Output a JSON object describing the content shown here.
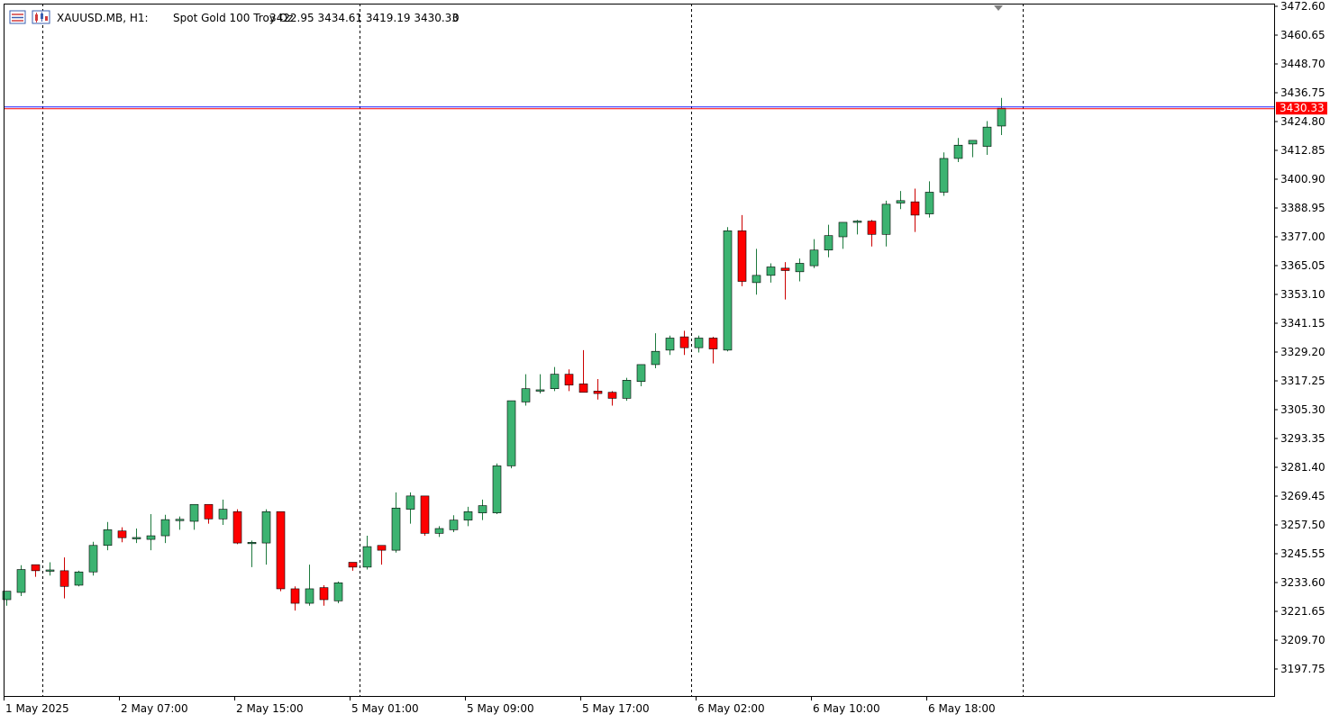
{
  "header": {
    "symbol": "XAUUSD.MB, H1:",
    "description": "Spot Gold 100 Troy Oz",
    "ohlc": "3422.95 3434.61 3419.19 3430.33",
    "extra": "0",
    "icons": [
      "chart-list-icon",
      "symbol-chart-icon"
    ]
  },
  "current_price_label": "3430.33",
  "colors": {
    "bull": "#3cb371",
    "bear": "#ff0000",
    "outline": "#000000",
    "wick_bull": "#1e7a3e",
    "wick_bear": "#cc0000",
    "ask_line": "#1e1eff",
    "bid_line": "#ff0000",
    "price_tag": "#ff0000"
  },
  "chart_data": {
    "type": "candlestick",
    "timeframe": "H1",
    "y_ticks": [
      "3472.60",
      "3460.65",
      "3448.70",
      "3436.75",
      "3424.80",
      "3412.85",
      "3400.90",
      "3388.95",
      "3377.00",
      "3365.05",
      "3353.10",
      "3341.15",
      "3329.20",
      "3317.25",
      "3305.30",
      "3293.35",
      "3281.40",
      "3269.45",
      "3257.50",
      "3245.55",
      "3233.60",
      "3221.65",
      "3209.70",
      "3197.75"
    ],
    "ylim": [
      3188.9,
      3473.0
    ],
    "x_labels": [
      {
        "index": 0,
        "text": "1 May 2025"
      },
      {
        "index": 8,
        "text": "2 May 07:00"
      },
      {
        "index": 16,
        "text": "2 May 15:00"
      },
      {
        "index": 24,
        "text": "5 May 01:00"
      },
      {
        "index": 32,
        "text": "5 May 09:00"
      },
      {
        "index": 40,
        "text": "5 May 17:00"
      },
      {
        "index": 48,
        "text": "6 May 02:00"
      },
      {
        "index": 56,
        "text": "6 May 10:00"
      },
      {
        "index": 64,
        "text": "6 May 18:00"
      }
    ],
    "separators": [
      2,
      24,
      47,
      70
    ],
    "candles": [
      [
        3226.5,
        3230.0,
        3224.0,
        3230.0
      ],
      [
        3229.5,
        3240.8,
        3228.0,
        3239.0
      ],
      [
        3241.0,
        3241.0,
        3236.0,
        3238.5
      ],
      [
        3238.5,
        3242.0,
        3236.5,
        3238.6
      ],
      [
        3238.5,
        3244.0,
        3227.0,
        3232.0
      ],
      [
        3232.5,
        3238.5,
        3232.0,
        3238.0
      ],
      [
        3238.0,
        3250.5,
        3236.5,
        3249.0
      ],
      [
        3249.0,
        3258.7,
        3247.0,
        3255.5
      ],
      [
        3255.0,
        3256.5,
        3250.3,
        3252.2
      ],
      [
        3252.0,
        3256.0,
        3250.0,
        3252.0
      ],
      [
        3251.5,
        3262.0,
        3247.0,
        3253.0
      ],
      [
        3253.0,
        3261.7,
        3250.0,
        3259.7
      ],
      [
        3259.4,
        3261.0,
        3255.5,
        3259.7
      ],
      [
        3259.0,
        3266.0,
        3255.5,
        3266.0
      ],
      [
        3266.0,
        3266.0,
        3258.0,
        3260.0
      ],
      [
        3260.0,
        3268.0,
        3257.5,
        3264.0
      ],
      [
        3263.0,
        3264.0,
        3249.5,
        3250.0
      ],
      [
        3250.0,
        3251.0,
        3240.0,
        3250.0
      ],
      [
        3250.0,
        3264.0,
        3241.0,
        3263.0
      ],
      [
        3263.0,
        3263.0,
        3230.0,
        3231.0
      ],
      [
        3231.0,
        3232.0,
        3222.0,
        3225.0
      ],
      [
        3225.0,
        3241.0,
        3224.0,
        3231.0
      ],
      [
        3231.5,
        3232.5,
        3224.0,
        3226.5
      ],
      [
        3226.0,
        3234.0,
        3225.0,
        3233.5
      ],
      [
        3242.0,
        3242.0,
        3238.5,
        3240.0
      ],
      [
        3240.0,
        3253.0,
        3239.0,
        3248.5
      ],
      [
        3249.0,
        3249.0,
        3241.0,
        3247.0
      ],
      [
        3247.0,
        3271.0,
        3246.0,
        3264.5
      ],
      [
        3264.0,
        3271.0,
        3258.0,
        3269.5
      ],
      [
        3269.5,
        3269.5,
        3253.0,
        3254.0
      ],
      [
        3254.0,
        3257.0,
        3252.5,
        3256.0
      ],
      [
        3255.5,
        3261.5,
        3254.5,
        3259.5
      ],
      [
        3259.5,
        3265.0,
        3257.0,
        3263.0
      ],
      [
        3262.5,
        3268.0,
        3259.5,
        3265.5
      ],
      [
        3262.5,
        3283.0,
        3262.0,
        3282.0
      ],
      [
        3282.0,
        3309.0,
        3281.0,
        3309.0
      ],
      [
        3308.5,
        3320.0,
        3307.0,
        3314.0
      ],
      [
        3313.0,
        3320.0,
        3312.0,
        3313.5
      ],
      [
        3314.0,
        3323.0,
        3313.0,
        3320.0
      ],
      [
        3320.0,
        3322.0,
        3313.0,
        3315.5
      ],
      [
        3316.0,
        3330.0,
        3312.5,
        3312.5
      ],
      [
        3313.0,
        3318.0,
        3309.5,
        3312.0
      ],
      [
        3312.5,
        3313.0,
        3307.0,
        3310.0
      ],
      [
        3310.0,
        3318.5,
        3309.0,
        3317.5
      ],
      [
        3317.0,
        3324.0,
        3315.0,
        3324.0
      ],
      [
        3324.0,
        3337.0,
        3322.5,
        3329.5
      ],
      [
        3330.0,
        3336.0,
        3328.0,
        3335.0
      ],
      [
        3335.5,
        3338.0,
        3328.0,
        3331.0
      ],
      [
        3331.0,
        3336.0,
        3329.0,
        3335.0
      ],
      [
        3335.0,
        3335.5,
        3324.5,
        3330.5
      ],
      [
        3330.0,
        3381.0,
        3329.5,
        3379.5
      ],
      [
        3379.5,
        3386.0,
        3356.5,
        3358.5
      ],
      [
        3358.0,
        3372.0,
        3353.0,
        3361.0
      ],
      [
        3361.0,
        3366.0,
        3358.0,
        3364.5
      ],
      [
        3364.0,
        3366.5,
        3351.0,
        3363.0
      ],
      [
        3362.5,
        3368.0,
        3358.5,
        3366.0
      ],
      [
        3365.0,
        3376.0,
        3364.0,
        3371.5
      ],
      [
        3371.5,
        3382.0,
        3368.5,
        3377.5
      ],
      [
        3377.0,
        3383.0,
        3372.0,
        3383.0
      ],
      [
        3383.0,
        3384.0,
        3378.0,
        3383.5
      ],
      [
        3383.5,
        3384.0,
        3373.0,
        3378.0
      ],
      [
        3378.0,
        3392.0,
        3373.0,
        3390.5
      ],
      [
        3391.0,
        3396.0,
        3388.5,
        3392.0
      ],
      [
        3391.5,
        3397.0,
        3379.0,
        3386.0
      ],
      [
        3386.5,
        3400.0,
        3385.0,
        3395.5
      ],
      [
        3395.5,
        3412.0,
        3394.0,
        3409.5
      ],
      [
        3409.5,
        3418.0,
        3408.0,
        3415.0
      ],
      [
        3415.5,
        3417.0,
        3410.0,
        3417.0
      ],
      [
        3414.5,
        3425.0,
        3411.0,
        3422.5
      ],
      [
        3422.95,
        3434.61,
        3419.19,
        3430.33
      ]
    ]
  }
}
